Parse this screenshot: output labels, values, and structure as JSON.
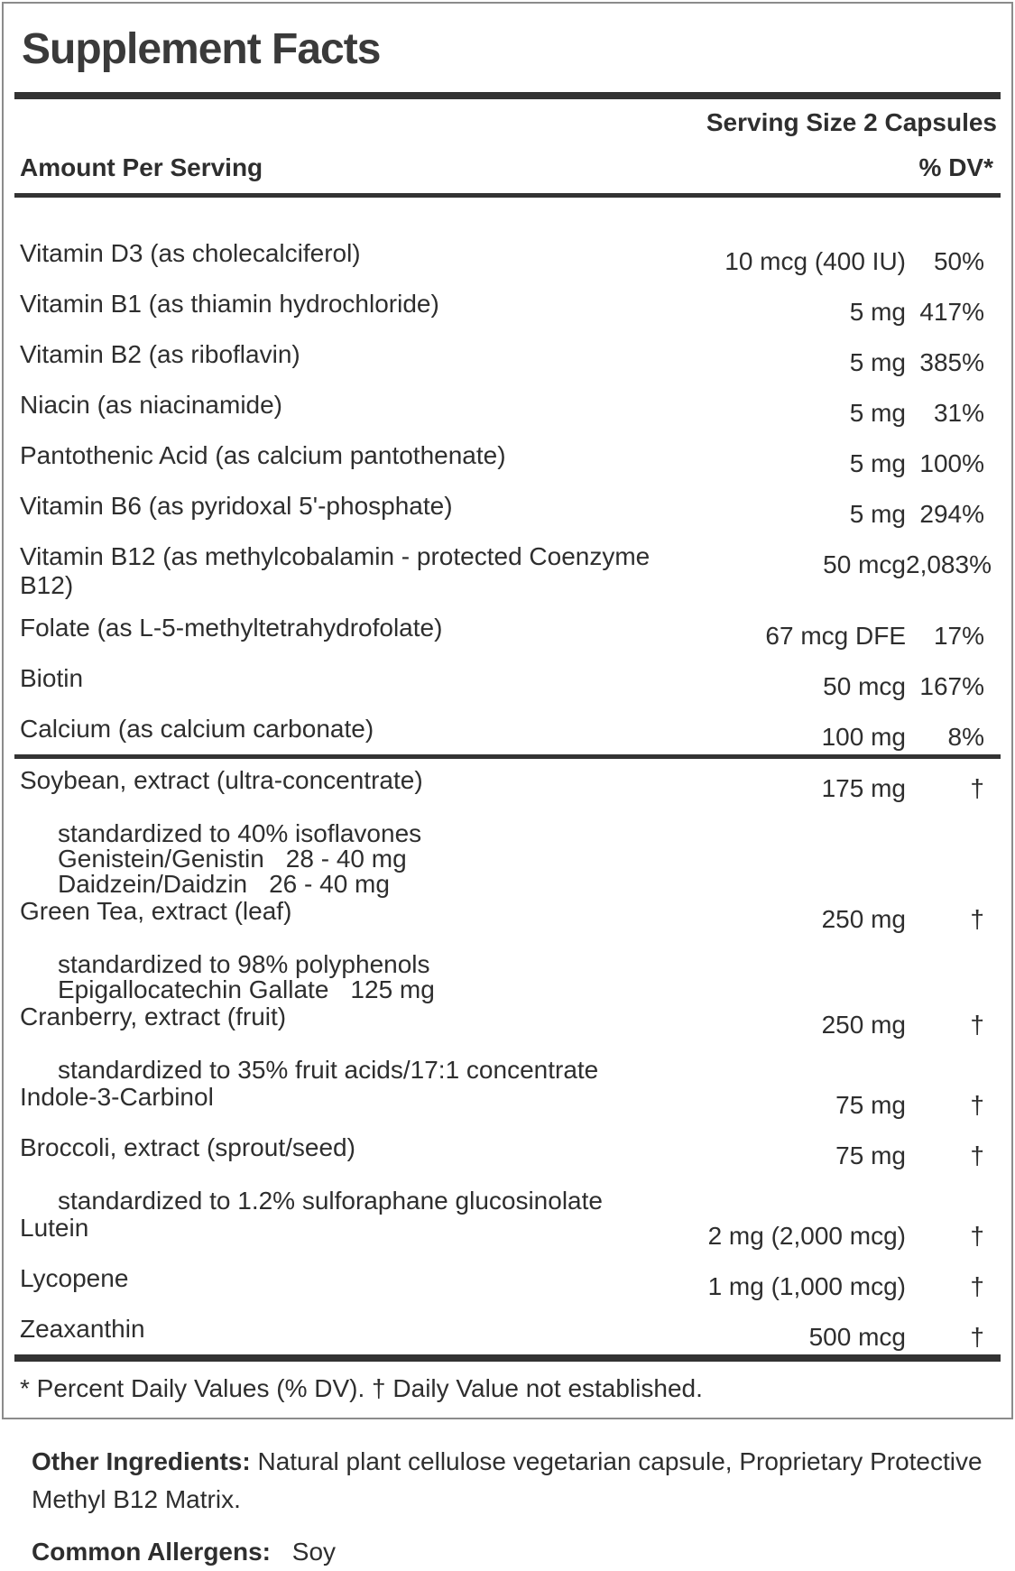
{
  "panel": {
    "title": "Supplement Facts",
    "serving_size": "Serving Size 2 Capsules",
    "columns": {
      "amount": "Amount Per Serving",
      "dv": "% DV*"
    },
    "rows": [
      {
        "name": "Vitamin D3 (as cholecalciferol)",
        "amount": "10 mcg (400 IU)",
        "dv": "50%"
      },
      {
        "name": "Vitamin B1 (as thiamin hydrochloride)",
        "amount": "5 mg",
        "dv": "417%"
      },
      {
        "name": "Vitamin B2 (as riboflavin)",
        "amount": "5 mg",
        "dv": "385%"
      },
      {
        "name": "Niacin (as niacinamide)",
        "amount": "5 mg",
        "dv": "31%"
      },
      {
        "name": "Pantothenic Acid (as calcium pantothenate)",
        "amount": "5 mg",
        "dv": "100%"
      },
      {
        "name": "Vitamin B6 (as pyridoxal 5'-phosphate)",
        "amount": "5 mg",
        "dv": "294%"
      },
      {
        "name": "Vitamin B12 (as methylcobalamin - protected Coenzyme B12)",
        "amount": "50 mcg",
        "dv": "2,083%"
      },
      {
        "name": "Folate (as L-5-methyltetrahydrofolate)",
        "amount": "67 mcg DFE",
        "dv": "17%"
      },
      {
        "name": "Biotin",
        "amount": "50 mcg",
        "dv": "167%"
      },
      {
        "name": "Calcium (as calcium carbonate)",
        "amount": "100 mg",
        "dv": "8%",
        "divider_after": true
      },
      {
        "name": "Soybean, extract (ultra-concentrate)",
        "amount": "175 mg",
        "dv": "†",
        "subs": [
          {
            "label": "standardized to 40% isoflavones"
          },
          {
            "label": "Genistein/Genistin",
            "value": "28 - 40 mg"
          },
          {
            "label": "Daidzein/Daidzin",
            "value": "26 - 40 mg"
          }
        ]
      },
      {
        "name": "Green Tea, extract (leaf)",
        "amount": "250 mg",
        "dv": "†",
        "subs": [
          {
            "label": "standardized to 98% polyphenols"
          },
          {
            "label": "Epigallocatechin Gallate",
            "value": "125 mg"
          }
        ]
      },
      {
        "name": "Cranberry, extract (fruit)",
        "amount": "250 mg",
        "dv": "†",
        "subs": [
          {
            "label": "standardized to 35% fruit acids/17:1 concentrate"
          }
        ]
      },
      {
        "name": "Indole-3-Carbinol",
        "amount": "75 mg",
        "dv": "†"
      },
      {
        "name": "Broccoli, extract (sprout/seed)",
        "amount": "75 mg",
        "dv": "†",
        "subs": [
          {
            "label": "standardized to 1.2% sulforaphane glucosinolate"
          }
        ]
      },
      {
        "name": "Lutein",
        "amount": "2 mg (2,000 mcg)",
        "dv": "†"
      },
      {
        "name": "Lycopene",
        "amount": "1 mg (1,000 mcg)",
        "dv": "†"
      },
      {
        "name": "Zeaxanthin",
        "amount": "500 mcg",
        "dv": "†"
      }
    ],
    "footnote": "* Percent Daily Values (% DV). † Daily Value not established."
  },
  "below": {
    "other_ingredients_label": "Other Ingredients:",
    "other_ingredients": "Natural plant cellulose vegetarian capsule, Proprietary Protective Methyl B12 Matrix.",
    "allergens_label": "Common Allergens:",
    "allergens": "Soy"
  },
  "colors": {
    "text": "#2e2e2e",
    "title": "#3a3a3a",
    "bar": "#333333",
    "panel_border": "#8b8b8b"
  }
}
